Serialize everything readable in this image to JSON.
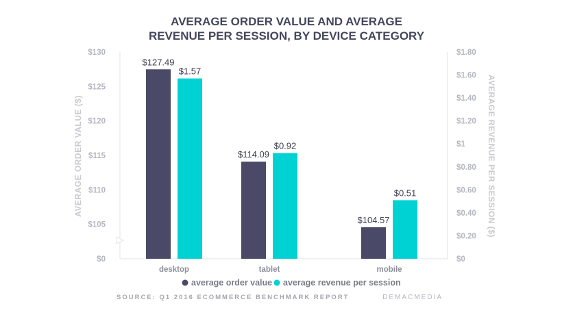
{
  "chart_data": {
    "type": "bar",
    "title_lines": [
      "AVERAGE ORDER VALUE AND AVERAGE",
      "REVENUE PER SESSION, BY DEVICE CATEGORY"
    ],
    "categories": [
      "desktop",
      "tablet",
      "mobile"
    ],
    "series": [
      {
        "name": "average order value",
        "axis": "left",
        "values": [
          127.49,
          114.09,
          104.57
        ],
        "labels": [
          "$127.49",
          "$114.09",
          "$104.57"
        ],
        "color": "#4a4a68"
      },
      {
        "name": "average revenue per session",
        "axis": "right",
        "values": [
          1.57,
          0.92,
          0.51
        ],
        "labels": [
          "$1.57",
          "$0.92",
          "$0.51"
        ],
        "color": "#00d2d3"
      }
    ],
    "left_axis": {
      "label": "AVERAGE ORDER VALUE ($)",
      "ticks": [
        "$0",
        "$105",
        "$110",
        "$115",
        "$120",
        "$125",
        "$130"
      ],
      "tick_values": [
        100,
        105,
        110,
        115,
        120,
        125,
        130
      ],
      "range": [
        100,
        130
      ],
      "broken_axis": true
    },
    "right_axis": {
      "label": "AVERAGE REVENUE PER SESSION ($)",
      "ticks": [
        "$0",
        "$0.20",
        "$0.40",
        "$0.60",
        "$0.80",
        "$1",
        "$1.20",
        "$1.40",
        "$1.60",
        "$1.80"
      ],
      "tick_values": [
        0,
        0.2,
        0.4,
        0.6,
        0.8,
        1.0,
        1.2,
        1.4,
        1.6,
        1.8
      ],
      "range": [
        0,
        1.8
      ]
    },
    "grid": false,
    "legend_position": "bottom"
  },
  "source": "SOURCE: Q1 2016 ECOMMERCE BENCHMARK REPORT",
  "brand": "DEMACMEDIA"
}
